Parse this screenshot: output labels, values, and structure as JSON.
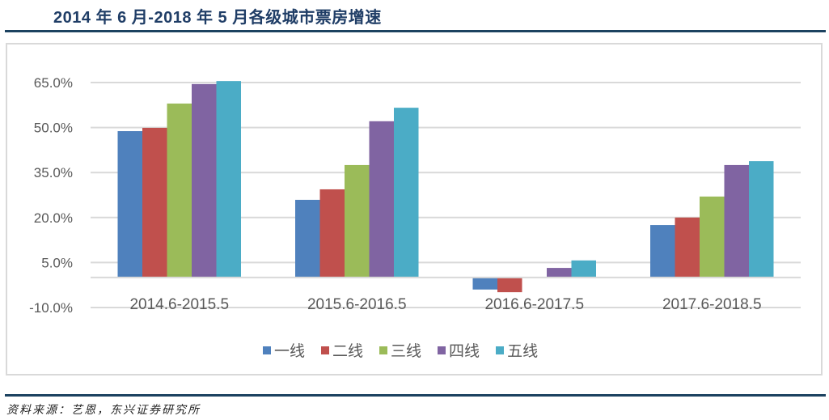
{
  "header": {
    "title": "2014 年 6 月-2018 年 5 月各级城市票房增速"
  },
  "footer": {
    "source": "资料来源：艺恩，东兴证券研究所"
  },
  "legend": [
    {
      "label": "一线",
      "color": "#4f81bd"
    },
    {
      "label": "二线",
      "color": "#c0504d"
    },
    {
      "label": "三线",
      "color": "#9bbb59"
    },
    {
      "label": "四线",
      "color": "#8064a2"
    },
    {
      "label": "五线",
      "color": "#4bacc6"
    }
  ],
  "chart_data": {
    "type": "bar",
    "title": "2014 年 6 月-2018 年 5 月各级城市票房增速",
    "xlabel": "",
    "ylabel": "",
    "categories": [
      "2014.6-2015.5",
      "2015.6-2016.5",
      "2016.6-2017.5",
      "2017.6-2018.5"
    ],
    "series": [
      {
        "name": "一线",
        "color": "#4f81bd",
        "values": [
          48.8,
          25.9,
          -4.0,
          17.5
        ]
      },
      {
        "name": "二线",
        "color": "#c0504d",
        "values": [
          49.9,
          29.4,
          -4.9,
          20.0
        ]
      },
      {
        "name": "三线",
        "color": "#9bbb59",
        "values": [
          58.0,
          37.5,
          0.0,
          27.0
        ]
      },
      {
        "name": "四线",
        "color": "#8064a2",
        "values": [
          64.5,
          52.1,
          3.2,
          37.5
        ]
      },
      {
        "name": "五线",
        "color": "#4bacc6",
        "values": [
          65.5,
          56.6,
          5.7,
          38.8
        ]
      }
    ],
    "yticks": [
      "65.0%",
      "50.0%",
      "35.0%",
      "20.0%",
      "5.0%",
      "-10.0%"
    ],
    "ytick_values": [
      65,
      50,
      35,
      20,
      5,
      -10
    ],
    "ylim": [
      -10,
      65
    ],
    "grid": true,
    "legend_position": "bottom"
  }
}
